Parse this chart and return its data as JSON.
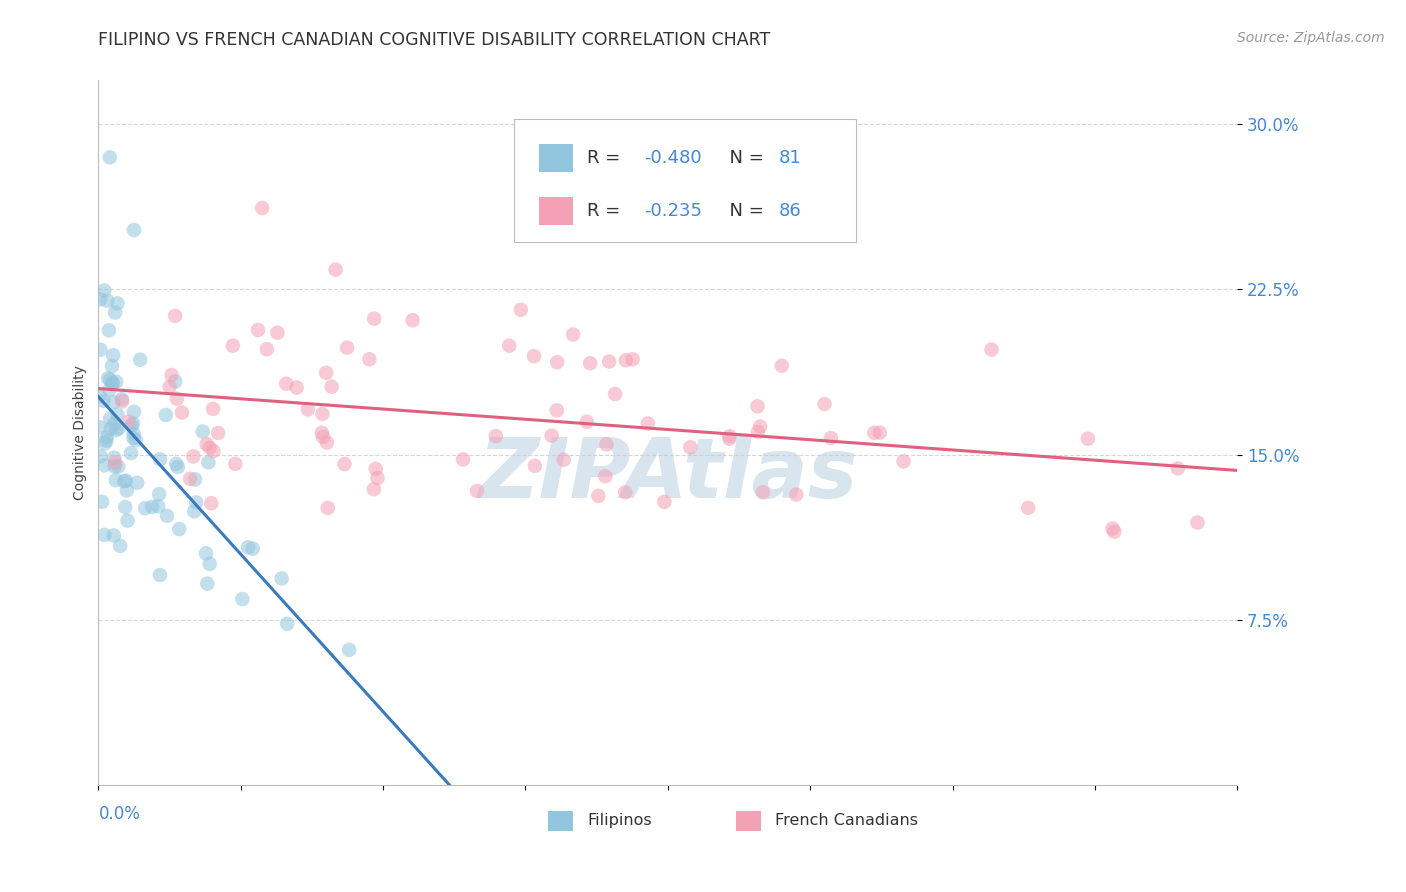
{
  "title": "FILIPINO VS FRENCH CANADIAN COGNITIVE DISABILITY CORRELATION CHART",
  "source": "Source: ZipAtlas.com",
  "ylabel": "Cognitive Disability",
  "xlim": [
    0.0,
    0.8
  ],
  "ylim": [
    0.0,
    0.32
  ],
  "r_filipino": -0.48,
  "n_filipino": 81,
  "r_french": -0.235,
  "n_french": 86,
  "color_filipino": "#92c5de",
  "color_french": "#f4a0b5",
  "line_color_filipino": "#3a7bbf",
  "line_color_french": "#e06080",
  "legend_label_filipino": "Filipinos",
  "legend_label_french": "French Canadians",
  "background_color": "#ffffff",
  "title_fontsize": 12.5,
  "axis_label_fontsize": 10,
  "legend_fontsize": 13,
  "source_fontsize": 10,
  "watermark_text": "ZIPAtlas",
  "watermark_color": "#b8cfe0",
  "dot_size": 110,
  "dot_alpha": 0.55,
  "grid_color": "#cccccc",
  "grid_alpha": 0.8,
  "ytick_color": "#4488dd",
  "xtick_color": "#4488dd"
}
